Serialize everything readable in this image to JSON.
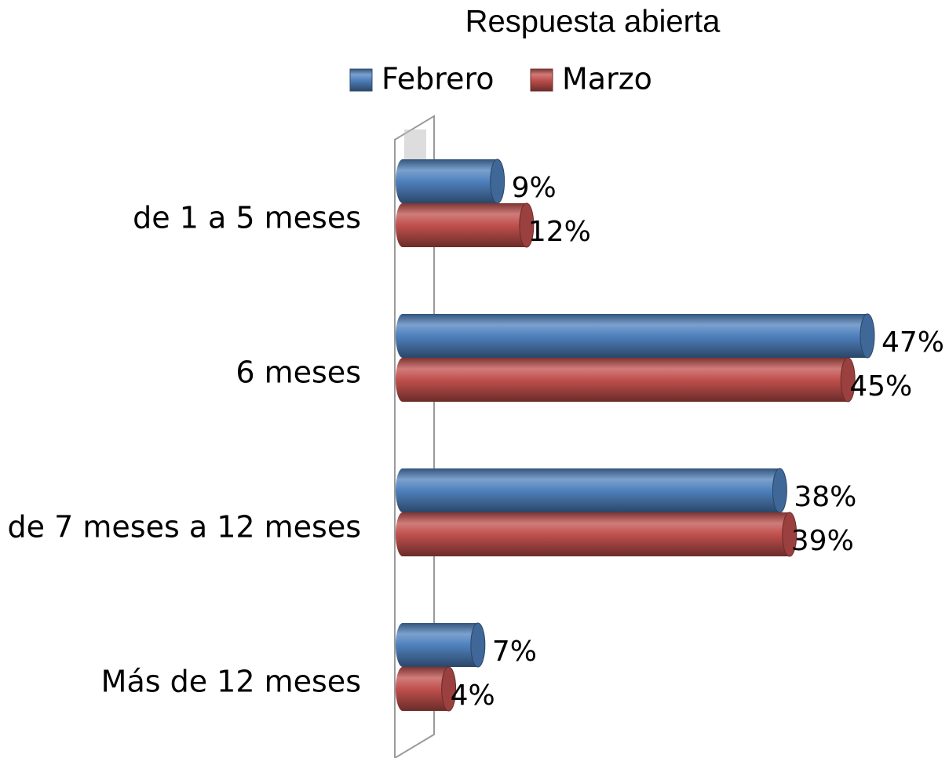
{
  "chart_data": {
    "type": "bar",
    "orientation": "horizontal",
    "title": "Respuesta abierta",
    "categories": [
      "de 1 a 5 meses",
      "6 meses",
      "de 7 meses a 12 meses",
      "Más de 12 meses"
    ],
    "series": [
      {
        "name": "Febrero",
        "color": "#4f81bd",
        "values": [
          9,
          47,
          38,
          7
        ],
        "value_labels": [
          "9%",
          "47%",
          "38%",
          "7%"
        ]
      },
      {
        "name": "Marzo",
        "color": "#c0504d",
        "values": [
          12,
          45,
          39,
          4
        ],
        "value_labels": [
          "12%",
          "45%",
          "39%",
          "4%"
        ]
      }
    ],
    "legend": "top"
  }
}
